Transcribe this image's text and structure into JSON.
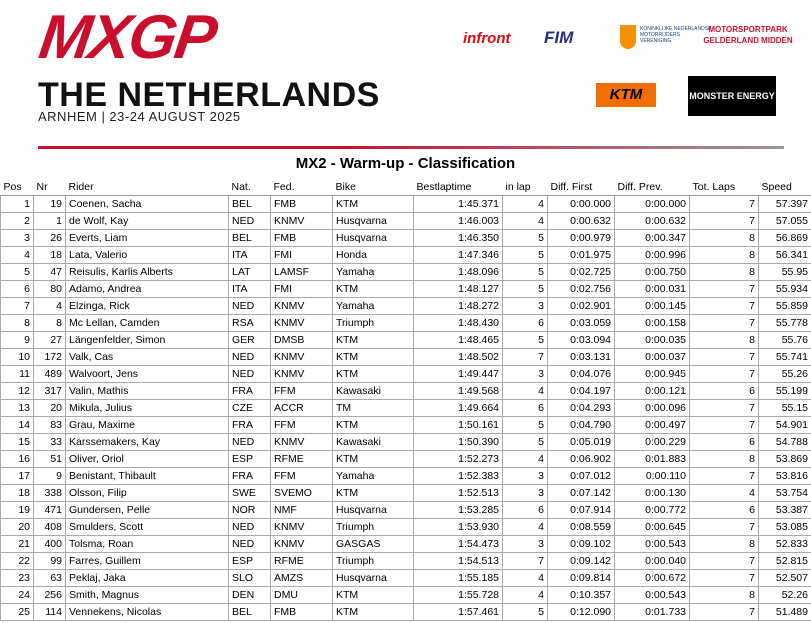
{
  "header": {
    "logo": "MXGP",
    "event": "THE NETHERLANDS",
    "subtitle": "ARNHEM | 23-24 AUGUST 2025",
    "sponsors": [
      "infront",
      "FIM",
      "KONINKLIJKE NEDERLANDSE MOTORRIJDERS VERENIGING",
      "MOTORSPORTPARK GELDERLAND MIDDEN",
      "KTM",
      "MONSTER ENERGY"
    ]
  },
  "title": "MX2 - Warm-up - Classification",
  "table": {
    "columns": [
      "Pos",
      "Nr",
      "Rider",
      "Nat.",
      "Fed.",
      "Bike",
      "Bestlaptime",
      "in lap",
      "Diff. First",
      "Diff. Prev.",
      "Tot. Laps",
      "Speed"
    ],
    "rows": [
      [
        "1",
        "19",
        "Coenen, Sacha",
        "BEL",
        "FMB",
        "KTM",
        "1:45.371",
        "4",
        "0:00.000",
        "0:00.000",
        "7",
        "57.397"
      ],
      [
        "2",
        "1",
        "de Wolf, Kay",
        "NED",
        "KNMV",
        "Husqvarna",
        "1:46.003",
        "4",
        "0:00.632",
        "0:00.632",
        "7",
        "57.055"
      ],
      [
        "3",
        "26",
        "Everts, Liam",
        "BEL",
        "FMB",
        "Husqvarna",
        "1:46.350",
        "5",
        "0:00.979",
        "0:00.347",
        "8",
        "56.869"
      ],
      [
        "4",
        "18",
        "Lata, Valerio",
        "ITA",
        "FMI",
        "Honda",
        "1:47.346",
        "5",
        "0:01.975",
        "0:00.996",
        "8",
        "56.341"
      ],
      [
        "5",
        "47",
        "Reisulis, Karlis Alberts",
        "LAT",
        "LAMSF",
        "Yamaha",
        "1:48.096",
        "5",
        "0:02.725",
        "0:00.750",
        "8",
        "55.95"
      ],
      [
        "6",
        "80",
        "Adamo, Andrea",
        "ITA",
        "FMI",
        "KTM",
        "1:48.127",
        "5",
        "0:02.756",
        "0:00.031",
        "7",
        "55.934"
      ],
      [
        "7",
        "4",
        "Elzinga, Rick",
        "NED",
        "KNMV",
        "Yamaha",
        "1:48.272",
        "3",
        "0:02.901",
        "0:00.145",
        "7",
        "55.859"
      ],
      [
        "8",
        "8",
        "Mc Lellan, Camden",
        "RSA",
        "KNMV",
        "Triumph",
        "1:48.430",
        "6",
        "0:03.059",
        "0:00.158",
        "7",
        "55.778"
      ],
      [
        "9",
        "27",
        "Längenfelder, Simon",
        "GER",
        "DMSB",
        "KTM",
        "1:48.465",
        "5",
        "0:03.094",
        "0:00.035",
        "8",
        "55.76"
      ],
      [
        "10",
        "172",
        "Valk, Cas",
        "NED",
        "KNMV",
        "KTM",
        "1:48.502",
        "7",
        "0:03.131",
        "0:00.037",
        "7",
        "55.741"
      ],
      [
        "11",
        "489",
        "Walvoort, Jens",
        "NED",
        "KNMV",
        "KTM",
        "1:49.447",
        "3",
        "0:04.076",
        "0:00.945",
        "7",
        "55.26"
      ],
      [
        "12",
        "317",
        "Valin, Mathis",
        "FRA",
        "FFM",
        "Kawasaki",
        "1:49.568",
        "4",
        "0:04.197",
        "0:00.121",
        "6",
        "55.199"
      ],
      [
        "13",
        "20",
        "Mikula, Julius",
        "CZE",
        "ACCR",
        "TM",
        "1:49.664",
        "6",
        "0:04.293",
        "0:00.096",
        "7",
        "55.15"
      ],
      [
        "14",
        "83",
        "Grau, Maxime",
        "FRA",
        "FFM",
        "KTM",
        "1:50.161",
        "5",
        "0:04.790",
        "0:00.497",
        "7",
        "54.901"
      ],
      [
        "15",
        "33",
        "Karssemakers, Kay",
        "NED",
        "KNMV",
        "Kawasaki",
        "1:50.390",
        "5",
        "0:05.019",
        "0:00.229",
        "6",
        "54.788"
      ],
      [
        "16",
        "51",
        "Oliver, Oriol",
        "ESP",
        "RFME",
        "KTM",
        "1:52.273",
        "4",
        "0:06.902",
        "0:01.883",
        "8",
        "53.869"
      ],
      [
        "17",
        "9",
        "Benistant, Thibault",
        "FRA",
        "FFM",
        "Yamaha",
        "1:52.383",
        "3",
        "0:07.012",
        "0:00.110",
        "7",
        "53.816"
      ],
      [
        "18",
        "338",
        "Olsson, Filip",
        "SWE",
        "SVEMO",
        "KTM",
        "1:52.513",
        "3",
        "0:07.142",
        "0:00.130",
        "4",
        "53.754"
      ],
      [
        "19",
        "471",
        "Gundersen, Pelle",
        "NOR",
        "NMF",
        "Husqvarna",
        "1:53.285",
        "6",
        "0:07.914",
        "0:00.772",
        "6",
        "53.387"
      ],
      [
        "20",
        "408",
        "Smulders, Scott",
        "NED",
        "KNMV",
        "Triumph",
        "1:53.930",
        "4",
        "0:08.559",
        "0:00.645",
        "7",
        "53.085"
      ],
      [
        "21",
        "400",
        "Tolsma, Roan",
        "NED",
        "KNMV",
        "GASGAS",
        "1:54.473",
        "3",
        "0:09.102",
        "0:00.543",
        "8",
        "52.833"
      ],
      [
        "22",
        "99",
        "Farres, Guillem",
        "ESP",
        "RFME",
        "Triumph",
        "1:54.513",
        "7",
        "0:09.142",
        "0:00.040",
        "7",
        "52.815"
      ],
      [
        "23",
        "63",
        "Peklaj, Jaka",
        "SLO",
        "AMZS",
        "Husqvarna",
        "1:55.185",
        "4",
        "0:09.814",
        "0:00.672",
        "7",
        "52.507"
      ],
      [
        "24",
        "256",
        "Smith, Magnus",
        "DEN",
        "DMU",
        "KTM",
        "1:55.728",
        "4",
        "0:10.357",
        "0:00.543",
        "8",
        "52.26"
      ],
      [
        "25",
        "114",
        "Vennekens, Nicolas",
        "BEL",
        "FMB",
        "KTM",
        "1:57.461",
        "5",
        "0:12.090",
        "0:01.733",
        "7",
        "51.489"
      ]
    ]
  }
}
